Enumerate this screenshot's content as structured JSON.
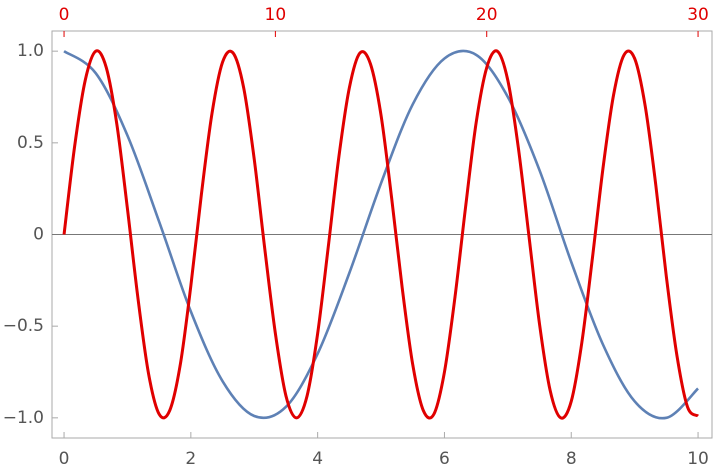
{
  "chart_data": {
    "type": "line",
    "xlim": [
      -0.19,
      10.22
    ],
    "xticks": [
      0,
      2,
      4,
      6,
      8,
      10
    ],
    "x2lim": [
      -0.57,
      30.66
    ],
    "x2ticks": [
      0,
      10,
      20,
      30
    ],
    "x2_color": "#e00000",
    "ylim": [
      -1.11,
      1.11
    ],
    "yticks": [
      {
        "value": -1,
        "label": "−1.0"
      },
      {
        "value": -0.5,
        "label": "−0.5"
      },
      0,
      0.5,
      {
        "value": 1,
        "label": "1.0"
      }
    ],
    "series": [
      {
        "color": "#5e81b5",
        "x": [
          0,
          0.5,
          1,
          1.5,
          2,
          2.5,
          3,
          3.5,
          4,
          4.5,
          5,
          5.5,
          6,
          6.5,
          7,
          7.5,
          8,
          8.5,
          9,
          9.5,
          10
        ],
        "values": [
          1,
          0.88,
          0.54,
          0.07,
          -0.42,
          -0.8,
          -0.99,
          -0.94,
          -0.65,
          -0.21,
          0.28,
          0.71,
          0.96,
          0.98,
          0.75,
          0.35,
          -0.15,
          -0.6,
          -0.91,
          -1.0,
          -0.84
        ]
      },
      {
        "color": "#e00000",
        "axis": "x2",
        "x": [
          0,
          0.5,
          1,
          1.5,
          2,
          2.5,
          3,
          3.5,
          4,
          4.5,
          5,
          5.5,
          6,
          6.5,
          7,
          7.5,
          8,
          8.5,
          9,
          9.5,
          10,
          10.5,
          11,
          11.5,
          12,
          12.5,
          13,
          13.5,
          14,
          14.5,
          15,
          15.5,
          16,
          16.5,
          17,
          17.5,
          18,
          18.5,
          19,
          19.5,
          20,
          20.5,
          21,
          21.5,
          22,
          22.5,
          23,
          23.5,
          24,
          24.5,
          25,
          25.5,
          26,
          26.5,
          27,
          27.5,
          28,
          28.5,
          29,
          29.5,
          30
        ],
        "values": [
          0,
          0.48,
          0.84,
          1.0,
          0.91,
          0.6,
          0.14,
          -0.35,
          -0.76,
          -0.98,
          -0.96,
          -0.71,
          -0.28,
          0.22,
          0.66,
          0.94,
          0.99,
          0.8,
          0.41,
          -0.08,
          -0.54,
          -0.88,
          -1.0,
          -0.88,
          -0.54,
          -0.07,
          0.42,
          0.8,
          0.99,
          0.93,
          0.65,
          0.2,
          -0.29,
          -0.71,
          -0.96,
          -0.98,
          -0.75,
          -0.34,
          0.15,
          0.61,
          0.91,
          1.0,
          0.84,
          0.47,
          -0.01,
          -0.49,
          -0.85,
          -1.0,
          -0.91,
          -0.59,
          -0.13,
          0.36,
          0.76,
          0.98,
          0.96,
          0.7,
          0.27,
          -0.23,
          -0.66,
          -0.94,
          -0.99
        ]
      }
    ]
  }
}
